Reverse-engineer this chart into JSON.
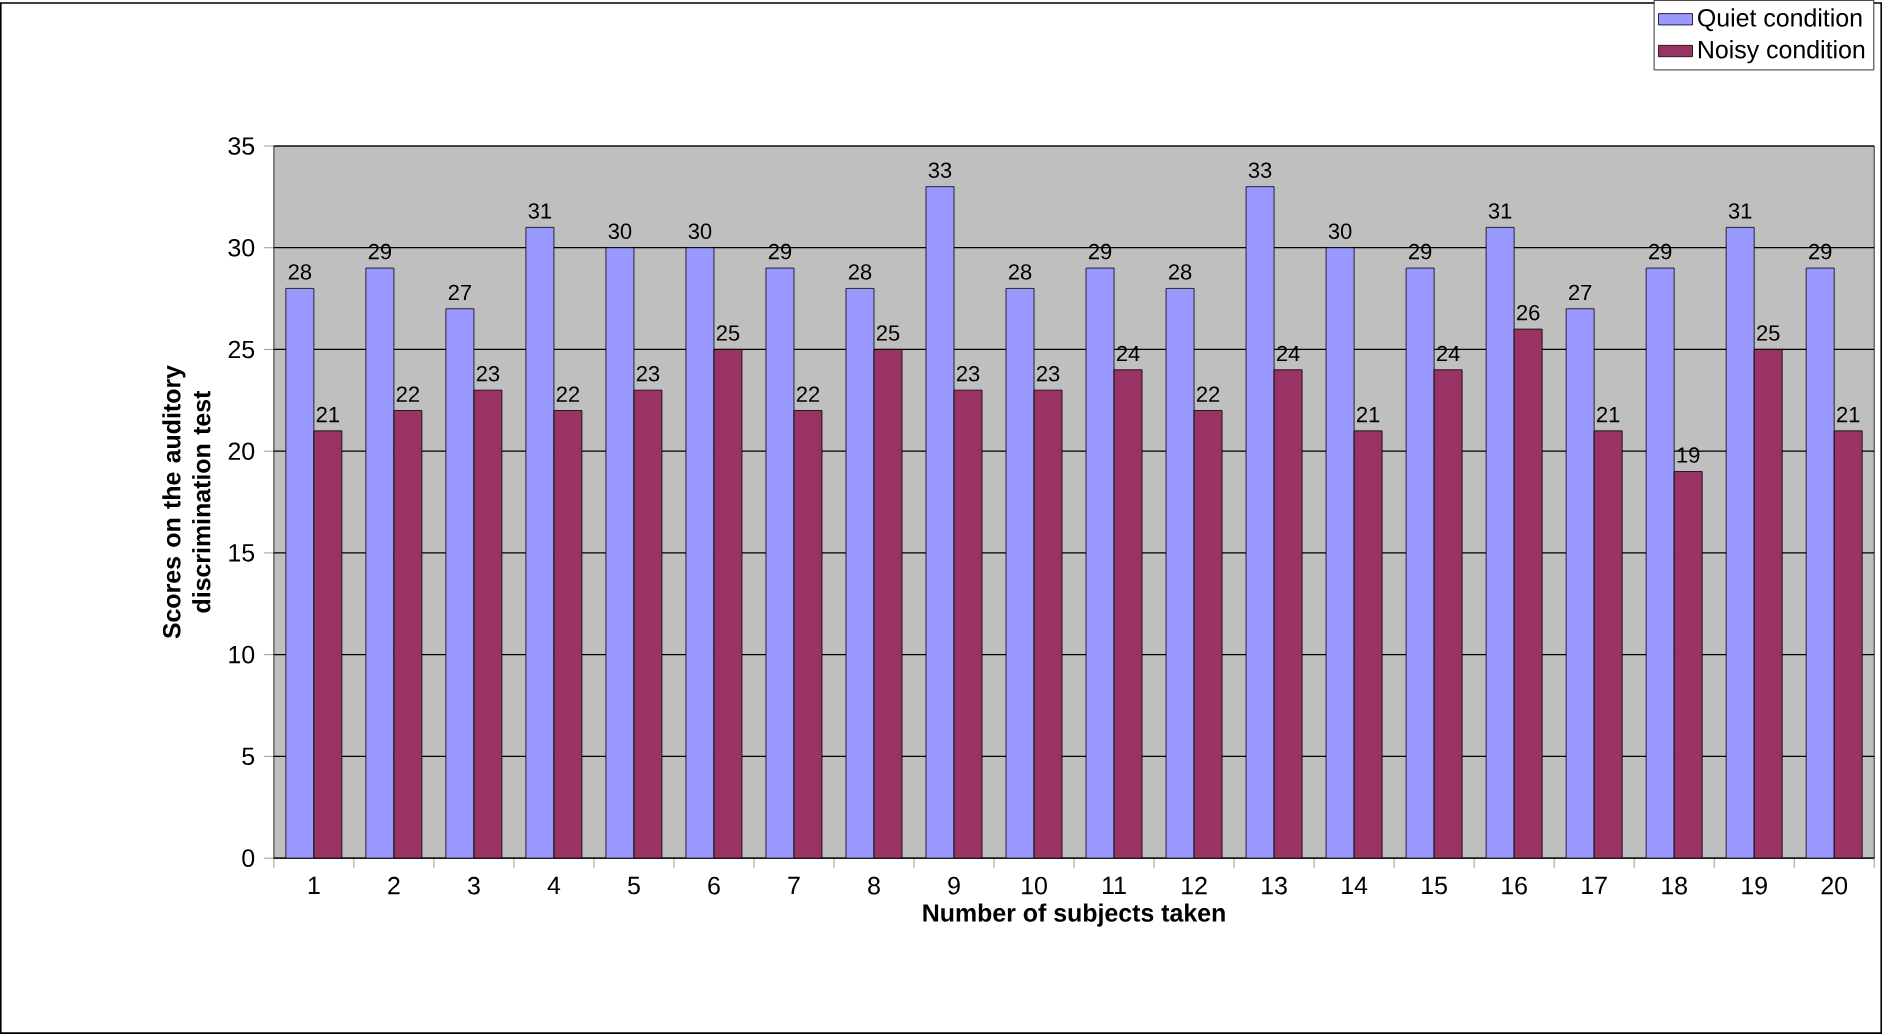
{
  "chart_data": {
    "type": "bar",
    "xlabel": "Number of subjects taken",
    "ylabel": "Scores on the auditory discrimination test",
    "categories": [
      "1",
      "2",
      "3",
      "4",
      "5",
      "6",
      "7",
      "8",
      "9",
      "10",
      "11",
      "12",
      "13",
      "14",
      "15",
      "16",
      "17",
      "18",
      "19",
      "20"
    ],
    "series": [
      {
        "name": "Quiet condition",
        "color": "#9999ff",
        "values": [
          28,
          29,
          27,
          31,
          30,
          30,
          29,
          28,
          33,
          28,
          29,
          28,
          33,
          30,
          29,
          31,
          27,
          29,
          31,
          29
        ]
      },
      {
        "name": "Noisy condition",
        "color": "#993366",
        "values": [
          21,
          22,
          23,
          22,
          23,
          25,
          22,
          25,
          23,
          23,
          24,
          22,
          24,
          21,
          24,
          26,
          21,
          19,
          25,
          21
        ]
      }
    ],
    "ylim": [
      0,
      35
    ],
    "yticks": [
      0,
      5,
      10,
      15,
      20,
      25,
      30,
      35
    ],
    "grid": "y",
    "legend": "top right",
    "data_labels": true
  }
}
